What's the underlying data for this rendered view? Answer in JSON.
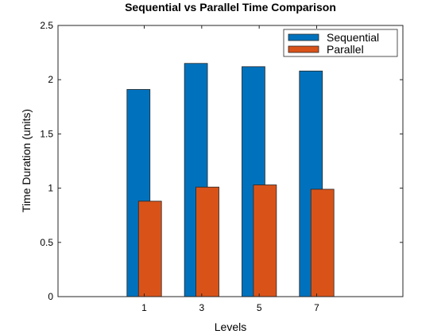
{
  "chart_data": {
    "type": "bar",
    "title": "Sequential vs Parallel Time Comparison",
    "xlabel": "Levels",
    "ylabel": "Time Duration (units)",
    "categories": [
      "1",
      "3",
      "5",
      "7"
    ],
    "x": [
      1,
      3,
      5,
      7
    ],
    "xlim": [
      -2,
      10
    ],
    "ylim": [
      0,
      2.5
    ],
    "yticks": [
      0,
      0.5,
      1,
      1.5,
      2,
      2.5
    ],
    "ytick_labels": [
      "0",
      "0.5",
      "1",
      "1.5",
      "2",
      "2.5"
    ],
    "grid": false,
    "legend_position": "top-right",
    "series": [
      {
        "name": "Sequential",
        "color": "#0072BD",
        "values": [
          1.91,
          2.15,
          2.12,
          2.08
        ]
      },
      {
        "name": "Parallel",
        "color": "#D95319",
        "values": [
          0.88,
          1.01,
          1.03,
          0.99
        ]
      }
    ]
  }
}
